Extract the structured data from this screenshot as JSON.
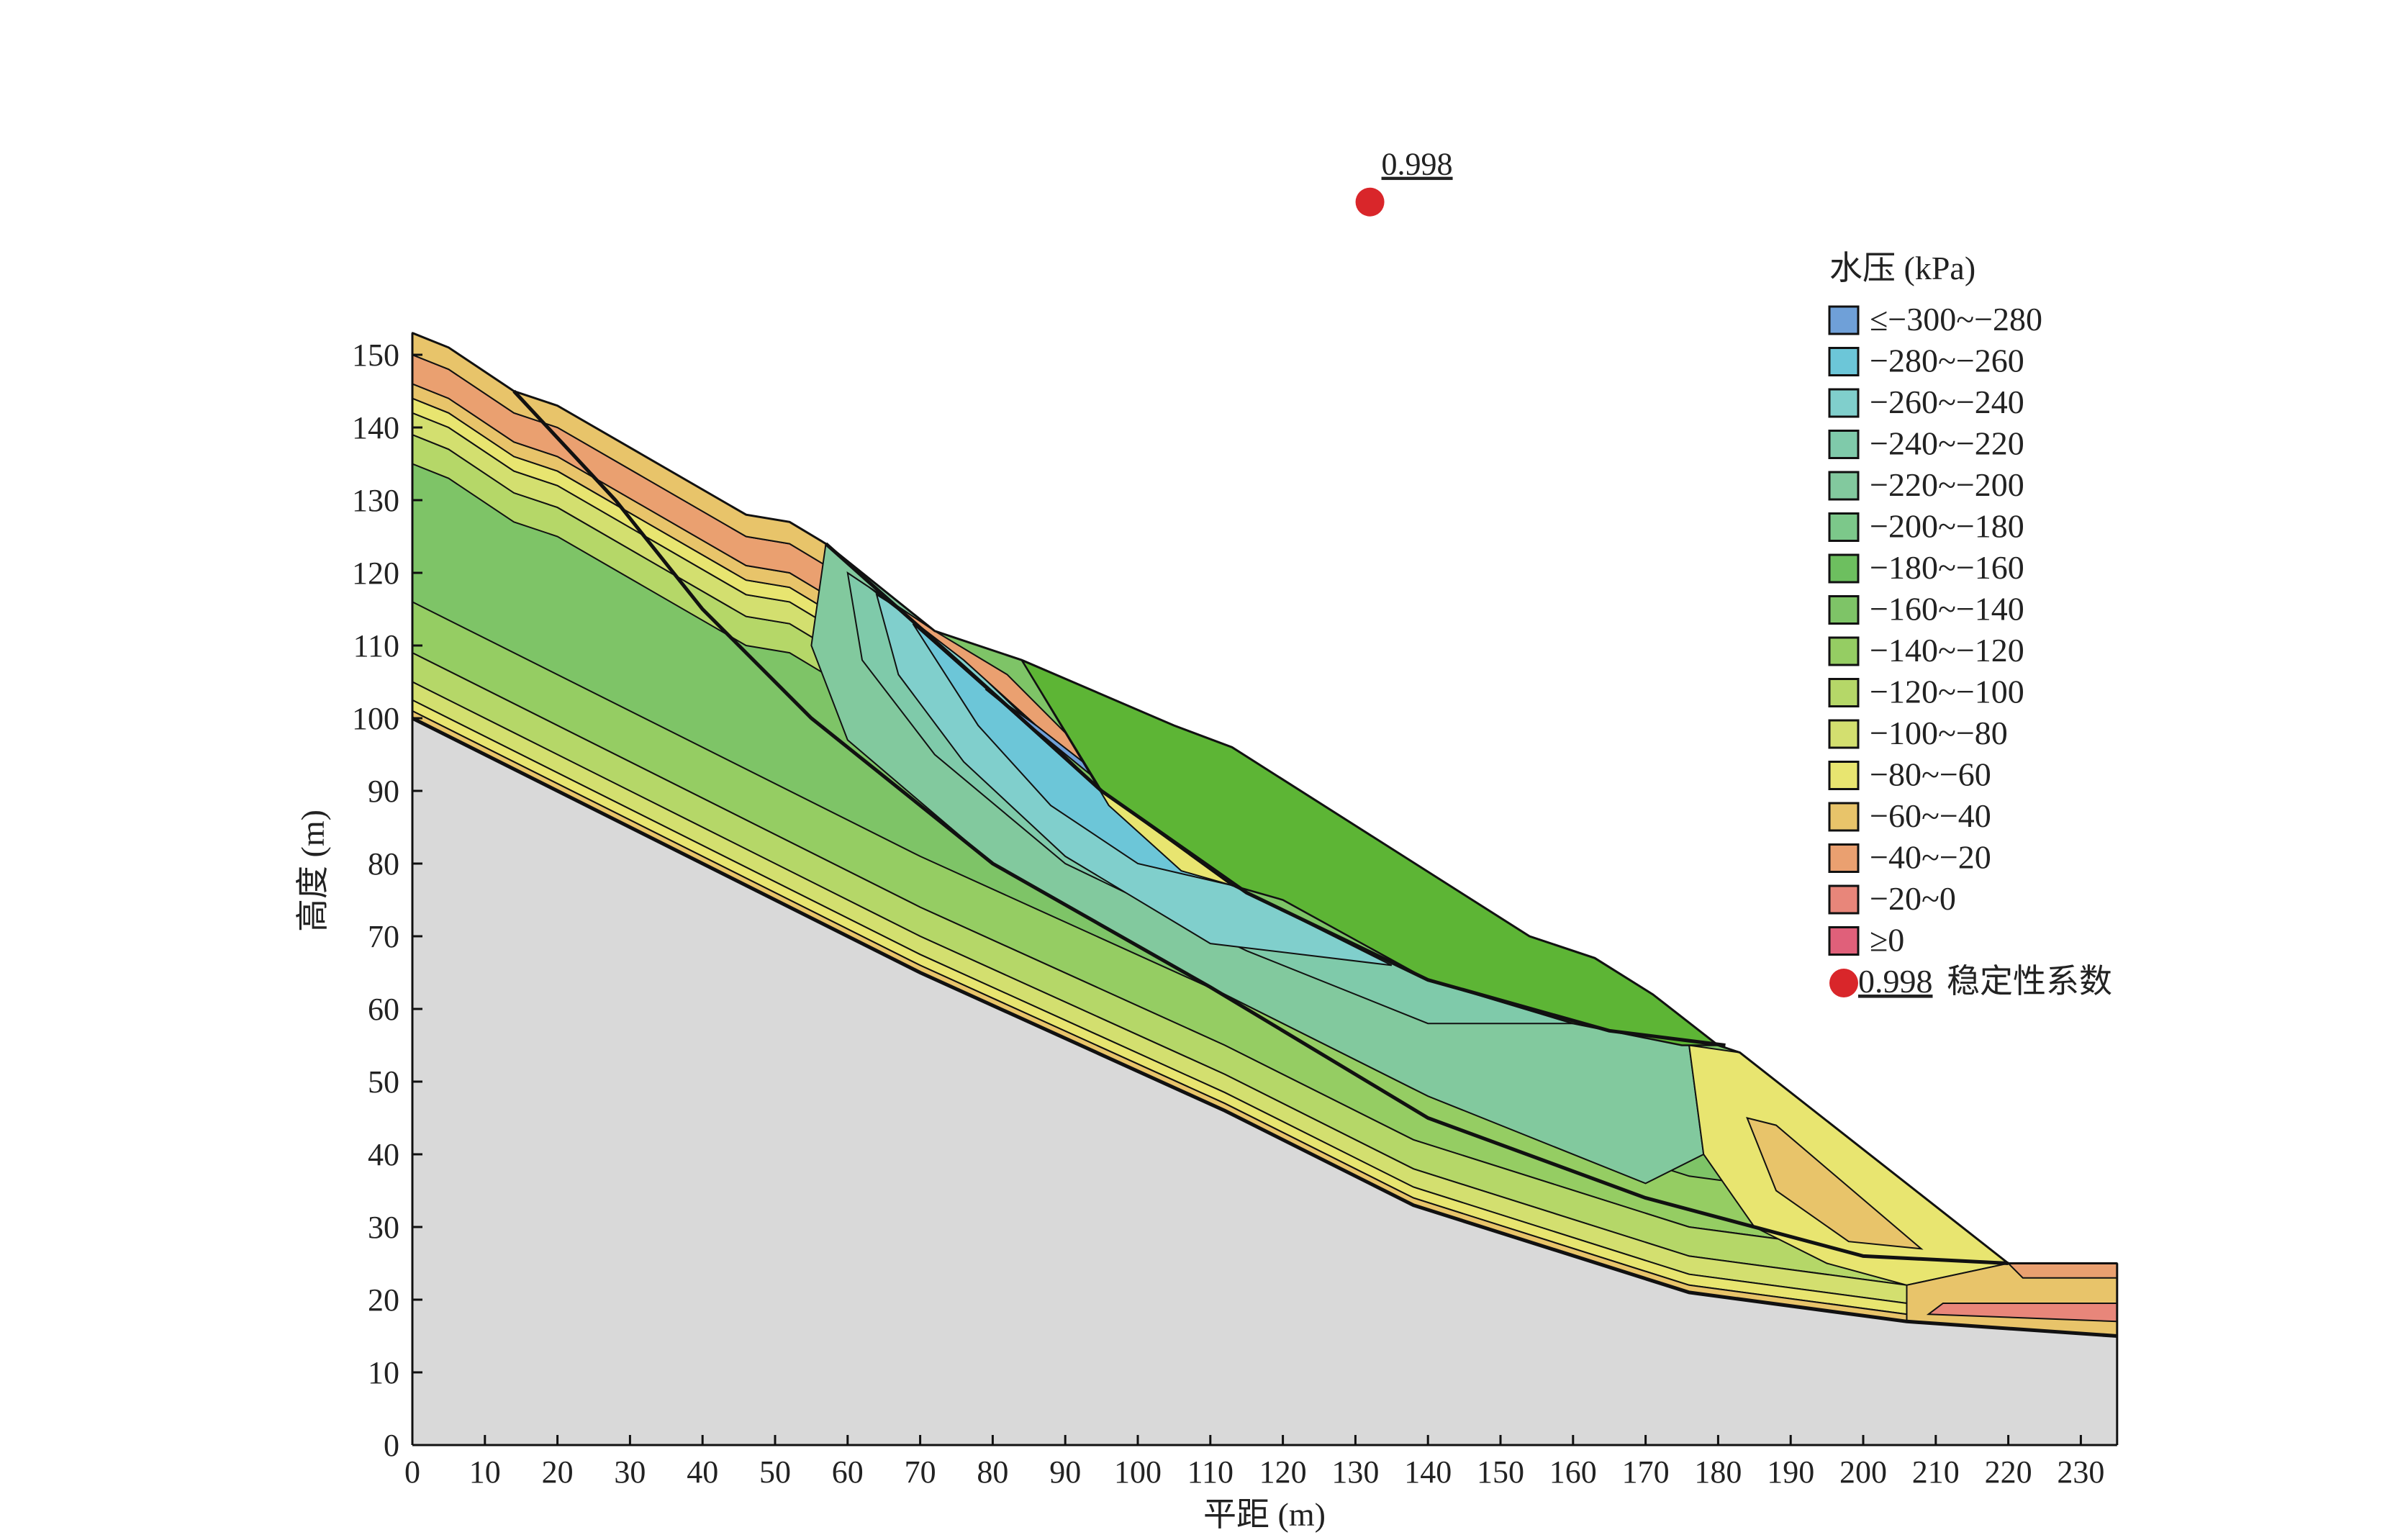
{
  "chart_data": {
    "type": "heatmap",
    "subtype": "filled-contour cross-section",
    "xlabel": "平距 (m)",
    "ylabel": "高度 (m)",
    "xlim": [
      0,
      235
    ],
    "ylim": [
      0,
      155
    ],
    "xticks": [
      0,
      10,
      20,
      30,
      40,
      50,
      60,
      70,
      80,
      90,
      100,
      110,
      120,
      130,
      140,
      150,
      160,
      170,
      180,
      190,
      200,
      210,
      220,
      230
    ],
    "yticks": [
      0,
      10,
      20,
      30,
      40,
      50,
      60,
      70,
      80,
      90,
      100,
      110,
      120,
      130,
      140,
      150
    ],
    "legend": {
      "title": "水压 (kPa)",
      "position": "right",
      "items": [
        {
          "label": "≤−300~−280",
          "color": "#6fa0d8"
        },
        {
          "label": "−280~−260",
          "color": "#6cc6d8"
        },
        {
          "label": "−260~−240",
          "color": "#80cfcc"
        },
        {
          "label": "−240~−220",
          "color": "#7fcaaa"
        },
        {
          "label": "−220~−200",
          "color": "#82c99e"
        },
        {
          "label": "−200~−180",
          "color": "#7cc88a"
        },
        {
          "label": "−180~−160",
          "color": "#6dbf5f"
        },
        {
          "label": "−160~−140",
          "color": "#7ec467"
        },
        {
          "label": "−140~−120",
          "color": "#95cd63"
        },
        {
          "label": "−120~−100",
          "color": "#b5d768"
        },
        {
          "label": "−100~−80",
          "color": "#d3df6f"
        },
        {
          "label": "−80~−60",
          "color": "#e8e570"
        },
        {
          "label": "−60~−40",
          "color": "#e8c46a"
        },
        {
          "label": "−40~−20",
          "color": "#eaa070"
        },
        {
          "label": "−20~0",
          "color": "#e8867a"
        },
        {
          "label": "≥0",
          "color": "#e0607a"
        }
      ],
      "marker_label_value": "0.998",
      "marker_label_text": "稳定性系数"
    },
    "safety_factor": {
      "value": "0.998",
      "point": [
        132,
        173
      ],
      "color": "#d9262a"
    },
    "bedrock_color": "#d9d9d9",
    "ground_surface": [
      [
        0,
        153
      ],
      [
        5,
        151
      ],
      [
        14,
        145
      ],
      [
        20,
        143
      ],
      [
        46,
        128
      ],
      [
        52,
        127
      ],
      [
        57,
        124
      ],
      [
        72,
        112
      ],
      [
        84,
        108
      ],
      [
        105,
        99
      ],
      [
        113,
        96
      ],
      [
        154,
        70
      ],
      [
        163,
        67
      ],
      [
        171,
        62
      ],
      [
        180,
        55
      ],
      [
        183,
        54
      ],
      [
        220,
        25
      ],
      [
        235,
        25
      ]
    ],
    "bedrock_surface": [
      [
        0,
        100
      ],
      [
        70,
        65
      ],
      [
        112,
        46
      ],
      [
        138,
        33
      ],
      [
        176,
        21
      ],
      [
        206,
        17
      ],
      [
        235,
        15
      ]
    ],
    "bedrock_bands": [
      {
        "from": 0,
        "to": 1,
        "band": 12
      },
      {
        "from": 1,
        "to": 2.5,
        "band": 11
      },
      {
        "from": 2.5,
        "to": 5,
        "band": 10
      },
      {
        "from": 5,
        "to": 9,
        "band": 9
      },
      {
        "from": 9,
        "to": 16,
        "band": 8
      }
    ],
    "surface_bands_upper_slope": [
      {
        "from": 0,
        "to": 3,
        "band": 12
      },
      {
        "from": 3,
        "to": 7,
        "band": 13
      },
      {
        "from": 7,
        "to": 9,
        "band": 12
      },
      {
        "from": 9,
        "to": 11,
        "band": 11
      },
      {
        "from": 11,
        "to": 14,
        "band": 10
      },
      {
        "from": 14,
        "to": 18,
        "band": 9
      }
    ],
    "regions": [
      {
        "band": 4,
        "points": [
          [
            57,
            124
          ],
          [
            72,
            112
          ],
          [
            95,
            90
          ],
          [
            113,
            77
          ],
          [
            140,
            64
          ],
          [
            176,
            55
          ],
          [
            178,
            40
          ],
          [
            170,
            36
          ],
          [
            140,
            48
          ],
          [
            110,
            63
          ],
          [
            80,
            80
          ],
          [
            60,
            97
          ],
          [
            55,
            110
          ]
        ]
      },
      {
        "band": 3,
        "points": [
          [
            60,
            120
          ],
          [
            72,
            112
          ],
          [
            95,
            90
          ],
          [
            113,
            77
          ],
          [
            140,
            64
          ],
          [
            165,
            58
          ],
          [
            140,
            58
          ],
          [
            115,
            68
          ],
          [
            90,
            80
          ],
          [
            72,
            95
          ],
          [
            62,
            108
          ]
        ]
      },
      {
        "band": 2,
        "points": [
          [
            64,
            117
          ],
          [
            72,
            112
          ],
          [
            95,
            90
          ],
          [
            113,
            77
          ],
          [
            135,
            66
          ],
          [
            110,
            69
          ],
          [
            90,
            81
          ],
          [
            76,
            94
          ],
          [
            67,
            106
          ]
        ]
      },
      {
        "band": 1,
        "points": [
          [
            69,
            113
          ],
          [
            95,
            90
          ],
          [
            113,
            77
          ],
          [
            100,
            80
          ],
          [
            88,
            88
          ],
          [
            78,
            99
          ]
        ]
      },
      {
        "band": 0,
        "points": [
          [
            79,
            104
          ],
          [
            95,
            91
          ],
          [
            92,
            96
          ],
          [
            86,
            99
          ]
        ]
      },
      {
        "band": 13,
        "points": [
          [
            63,
            118
          ],
          [
            72,
            112
          ],
          [
            82,
            106
          ],
          [
            94,
            94
          ],
          [
            95,
            92
          ],
          [
            86,
            99
          ],
          [
            76,
            108
          ]
        ]
      },
      {
        "band": 11,
        "points": [
          [
            84,
            108
          ],
          [
            95,
            97
          ],
          [
            113,
            77
          ],
          [
            106,
            79
          ],
          [
            96,
            88
          ]
        ]
      },
      {
        "band": 11,
        "points": [
          [
            176,
            55
          ],
          [
            183,
            54
          ],
          [
            220,
            25
          ],
          [
            206,
            22
          ],
          [
            195,
            25
          ],
          [
            185,
            30
          ],
          [
            178,
            40
          ]
        ]
      },
      {
        "band": 12,
        "points": [
          [
            184,
            45
          ],
          [
            188,
            44
          ],
          [
            208,
            27
          ],
          [
            198,
            28
          ],
          [
            188,
            35
          ]
        ]
      },
      {
        "band": 12,
        "points": [
          [
            206,
            17
          ],
          [
            235,
            15
          ],
          [
            235,
            25
          ],
          [
            220,
            25
          ],
          [
            206,
            22
          ]
        ]
      },
      {
        "band": 14,
        "points": [
          [
            209,
            18
          ],
          [
            235,
            17
          ],
          [
            235,
            19.5
          ],
          [
            211,
            19.5
          ]
        ]
      },
      {
        "band": 13,
        "points": [
          [
            220,
            25
          ],
          [
            235,
            25
          ],
          [
            235,
            23
          ],
          [
            222,
            23
          ]
        ]
      }
    ],
    "landslide_body": {
      "color": "#5db535",
      "points": [
        [
          84,
          108
        ],
        [
          105,
          99
        ],
        [
          113,
          96
        ],
        [
          154,
          70
        ],
        [
          163,
          67
        ],
        [
          171,
          62
        ],
        [
          180,
          55
        ],
        [
          175,
          55
        ],
        [
          160,
          58
        ],
        [
          140,
          64
        ],
        [
          120,
          75
        ],
        [
          113,
          77
        ],
        [
          95,
          90
        ]
      ]
    },
    "slip_surfaces": [
      [
        [
          14,
          145
        ],
        [
          28,
          130
        ],
        [
          40,
          115
        ],
        [
          55,
          100
        ],
        [
          80,
          80
        ],
        [
          110,
          63
        ],
        [
          140,
          45
        ],
        [
          170,
          34
        ],
        [
          200,
          26
        ],
        [
          220,
          25
        ]
      ],
      [
        [
          57,
          124
        ],
        [
          75,
          108
        ],
        [
          95,
          90
        ],
        [
          115,
          76
        ],
        [
          140,
          64
        ],
        [
          165,
          57
        ],
        [
          181,
          55
        ]
      ]
    ]
  }
}
